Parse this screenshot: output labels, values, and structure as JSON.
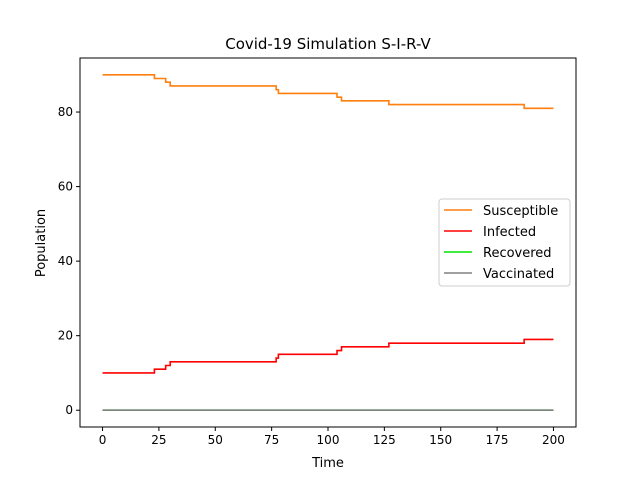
{
  "chart_data": {
    "type": "line",
    "title": "Covid-19 Simulation S-I-R-V",
    "xlabel": "Time",
    "ylabel": "Population",
    "xlim": [
      -10,
      210
    ],
    "ylim": [
      -4.5,
      94.5
    ],
    "xticks": [
      0,
      25,
      50,
      75,
      100,
      125,
      150,
      175,
      200
    ],
    "yticks": [
      0,
      20,
      40,
      60,
      80
    ],
    "grid": false,
    "legend_position": "center-right",
    "series": [
      {
        "name": "Susceptible",
        "color": "#ff7f0e",
        "points": [
          [
            0,
            90
          ],
          [
            23,
            90
          ],
          [
            23,
            89
          ],
          [
            28,
            89
          ],
          [
            28,
            88
          ],
          [
            30,
            88
          ],
          [
            30,
            87
          ],
          [
            77,
            87
          ],
          [
            77,
            86
          ],
          [
            78,
            86
          ],
          [
            78,
            85
          ],
          [
            104,
            85
          ],
          [
            104,
            84
          ],
          [
            106,
            84
          ],
          [
            106,
            83
          ],
          [
            127,
            83
          ],
          [
            127,
            82
          ],
          [
            187,
            82
          ],
          [
            187,
            81
          ],
          [
            200,
            81
          ]
        ]
      },
      {
        "name": "Infected",
        "color": "#ff0000",
        "points": [
          [
            0,
            10
          ],
          [
            23,
            10
          ],
          [
            23,
            11
          ],
          [
            28,
            11
          ],
          [
            28,
            12
          ],
          [
            30,
            12
          ],
          [
            30,
            13
          ],
          [
            77,
            13
          ],
          [
            77,
            14
          ],
          [
            78,
            14
          ],
          [
            78,
            15
          ],
          [
            104,
            15
          ],
          [
            104,
            16
          ],
          [
            106,
            16
          ],
          [
            106,
            17
          ],
          [
            127,
            17
          ],
          [
            127,
            18
          ],
          [
            187,
            18
          ],
          [
            187,
            19
          ],
          [
            200,
            19
          ]
        ]
      },
      {
        "name": "Recovered",
        "color": "#00e600",
        "points": [
          [
            0,
            0
          ],
          [
            200,
            0
          ]
        ]
      },
      {
        "name": "Vaccinated",
        "color": "#808080",
        "points": [
          [
            0,
            0
          ],
          [
            200,
            0
          ]
        ]
      }
    ]
  }
}
